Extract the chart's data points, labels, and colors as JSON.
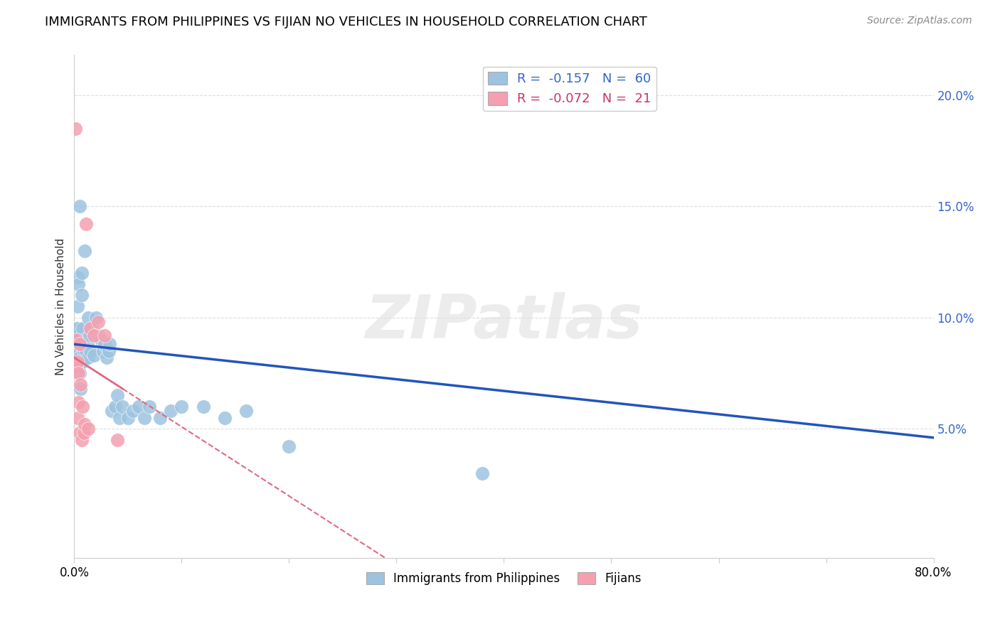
{
  "title": "IMMIGRANTS FROM PHILIPPINES VS FIJIAN NO VEHICLES IN HOUSEHOLD CORRELATION CHART",
  "source": "Source: ZipAtlas.com",
  "ylabel": "No Vehicles in Household",
  "watermark": "ZIPatlas",
  "blue_color": "#9dc3e0",
  "pink_color": "#f4a0b0",
  "blue_line_color": "#2255bb",
  "pink_line_color": "#e06880",
  "grid_color": "#dddddd",
  "background_color": "#ffffff",
  "xmin": 0.0,
  "xmax": 0.8,
  "ymin": -0.008,
  "ymax": 0.218,
  "blue_trend_y_start": 0.088,
  "blue_trend_y_end": 0.046,
  "pink_trend_x_end": 0.045,
  "pink_trend_y_start": 0.082,
  "pink_trend_y_end": 0.068,
  "philippines_x": [
    0.001,
    0.001,
    0.001,
    0.002,
    0.002,
    0.002,
    0.002,
    0.003,
    0.003,
    0.003,
    0.004,
    0.004,
    0.004,
    0.004,
    0.005,
    0.005,
    0.005,
    0.006,
    0.006,
    0.007,
    0.007,
    0.008,
    0.008,
    0.009,
    0.01,
    0.01,
    0.011,
    0.012,
    0.013,
    0.013,
    0.014,
    0.015,
    0.016,
    0.018,
    0.02,
    0.022,
    0.025,
    0.027,
    0.028,
    0.03,
    0.032,
    0.033,
    0.035,
    0.038,
    0.04,
    0.042,
    0.045,
    0.05,
    0.055,
    0.06,
    0.065,
    0.07,
    0.08,
    0.09,
    0.1,
    0.12,
    0.14,
    0.16,
    0.2,
    0.38
  ],
  "philippines_y": [
    0.09,
    0.095,
    0.085,
    0.092,
    0.088,
    0.082,
    0.08,
    0.118,
    0.105,
    0.095,
    0.115,
    0.09,
    0.085,
    0.078,
    0.15,
    0.082,
    0.075,
    0.088,
    0.068,
    0.12,
    0.11,
    0.095,
    0.08,
    0.085,
    0.13,
    0.09,
    0.085,
    0.088,
    0.1,
    0.082,
    0.092,
    0.085,
    0.095,
    0.083,
    0.1,
    0.092,
    0.09,
    0.085,
    0.088,
    0.082,
    0.085,
    0.088,
    0.058,
    0.06,
    0.065,
    0.055,
    0.06,
    0.055,
    0.058,
    0.06,
    0.055,
    0.06,
    0.055,
    0.058,
    0.06,
    0.06,
    0.055,
    0.058,
    0.042,
    0.03
  ],
  "fijian_x": [
    0.001,
    0.002,
    0.002,
    0.003,
    0.003,
    0.004,
    0.004,
    0.005,
    0.005,
    0.006,
    0.007,
    0.008,
    0.009,
    0.01,
    0.011,
    0.013,
    0.015,
    0.018,
    0.022,
    0.028,
    0.04
  ],
  "fijian_y": [
    0.185,
    0.09,
    0.078,
    0.08,
    0.055,
    0.075,
    0.062,
    0.088,
    0.048,
    0.07,
    0.045,
    0.06,
    0.048,
    0.052,
    0.142,
    0.05,
    0.095,
    0.092,
    0.098,
    0.092,
    0.045
  ],
  "legend1_label": "R =  -0.157   N =  60",
  "legend2_label": "R =  -0.072   N =  21",
  "bottom_legend1": "Immigrants from Philippines",
  "bottom_legend2": "Fijians"
}
